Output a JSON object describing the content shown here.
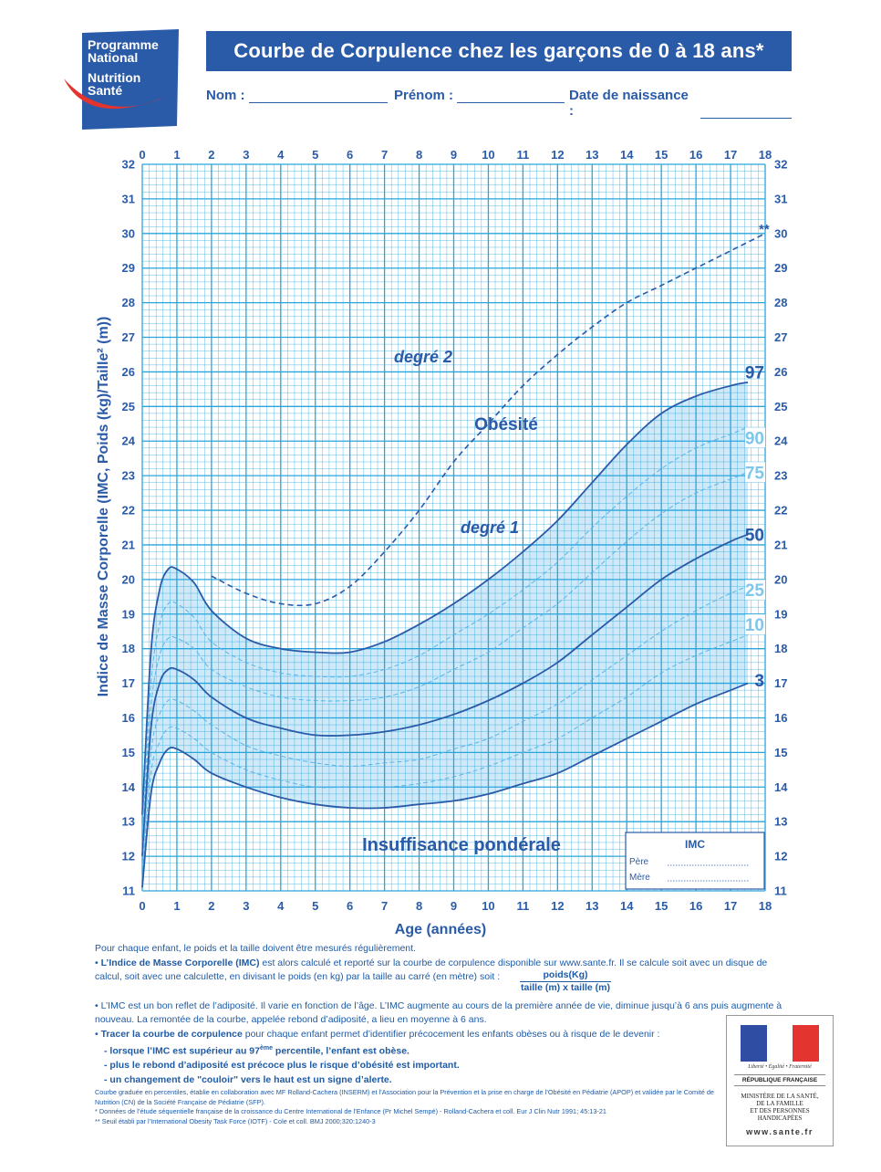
{
  "logo": {
    "line1": "Programme",
    "line2": "National",
    "line3": "Nutrition",
    "line4": "Santé"
  },
  "header": {
    "title": "Courbe de Corpulence chez les garçons de 0 à 18 ans*"
  },
  "fields": {
    "nom": "Nom :",
    "prenom": "Prénom :",
    "date": "Date de naissance :"
  },
  "chart_data": {
    "type": "line",
    "title": "Courbe de Corpulence chez les garçons de 0 à 18 ans*",
    "xlabel": "Age (années)",
    "ylabel": "Indice de Masse Corporelle (IMC, Poids (kg)/Taille² (m))",
    "xlim": [
      0,
      18
    ],
    "ylim": [
      11,
      32
    ],
    "x_ticks": [
      0,
      1,
      2,
      3,
      4,
      5,
      6,
      7,
      8,
      9,
      10,
      11,
      12,
      13,
      14,
      15,
      16,
      17,
      18
    ],
    "y_ticks": [
      11,
      12,
      13,
      14,
      15,
      16,
      17,
      18,
      19,
      20,
      21,
      22,
      23,
      24,
      25,
      26,
      27,
      28,
      29,
      30,
      31,
      32
    ],
    "series": [
      {
        "name": "97",
        "style": "solid",
        "ages": [
          0,
          0.25,
          0.5,
          0.75,
          1,
          1.5,
          2,
          3,
          4,
          5,
          6,
          7,
          8,
          9,
          10,
          11,
          12,
          13,
          14,
          15,
          16,
          17,
          17.5
        ],
        "values": [
          13.2,
          17.9,
          19.7,
          20.3,
          20.3,
          19.9,
          19.1,
          18.3,
          18.0,
          17.9,
          17.9,
          18.2,
          18.7,
          19.3,
          20.0,
          20.8,
          21.7,
          22.8,
          23.9,
          24.8,
          25.3,
          25.6,
          25.7
        ]
      },
      {
        "name": "90",
        "style": "dashed",
        "ages": [
          0,
          0.25,
          0.5,
          0.75,
          1,
          1.5,
          2,
          3,
          4,
          5,
          6,
          7,
          8,
          9,
          10,
          11,
          12,
          13,
          14,
          15,
          16,
          17,
          17.5
        ],
        "values": [
          12.8,
          17.0,
          18.7,
          19.3,
          19.3,
          18.9,
          18.2,
          17.6,
          17.3,
          17.2,
          17.2,
          17.4,
          17.8,
          18.4,
          19.0,
          19.7,
          20.5,
          21.5,
          22.4,
          23.2,
          23.8,
          24.2,
          24.4
        ]
      },
      {
        "name": "75",
        "style": "dashed",
        "ages": [
          0,
          0.25,
          0.5,
          0.75,
          1,
          1.5,
          2,
          3,
          4,
          5,
          6,
          7,
          8,
          9,
          10,
          11,
          12,
          13,
          14,
          15,
          16,
          17,
          17.5
        ],
        "values": [
          12.4,
          16.3,
          17.8,
          18.3,
          18.3,
          18.0,
          17.4,
          16.9,
          16.6,
          16.5,
          16.5,
          16.6,
          16.9,
          17.4,
          17.9,
          18.6,
          19.3,
          20.2,
          21.1,
          21.9,
          22.5,
          22.9,
          23.1
        ]
      },
      {
        "name": "50",
        "style": "solid",
        "ages": [
          0,
          0.25,
          0.5,
          0.75,
          1,
          1.5,
          2,
          3,
          4,
          5,
          6,
          7,
          8,
          9,
          10,
          11,
          12,
          13,
          14,
          15,
          16,
          17,
          17.5
        ],
        "values": [
          12.0,
          15.7,
          17.0,
          17.4,
          17.4,
          17.1,
          16.6,
          16.0,
          15.7,
          15.5,
          15.5,
          15.6,
          15.8,
          16.1,
          16.5,
          17.0,
          17.6,
          18.4,
          19.2,
          20.0,
          20.6,
          21.1,
          21.3
        ]
      },
      {
        "name": "25",
        "style": "dashed",
        "ages": [
          0,
          0.25,
          0.5,
          0.75,
          1,
          1.5,
          2,
          3,
          4,
          5,
          6,
          7,
          8,
          9,
          10,
          11,
          12,
          13,
          14,
          15,
          16,
          17,
          17.5
        ],
        "values": [
          11.7,
          15.0,
          16.1,
          16.5,
          16.5,
          16.2,
          15.8,
          15.2,
          14.9,
          14.7,
          14.6,
          14.7,
          14.8,
          15.1,
          15.4,
          15.9,
          16.4,
          17.1,
          17.8,
          18.5,
          19.1,
          19.6,
          19.8
        ]
      },
      {
        "name": "10",
        "style": "dashed",
        "ages": [
          0,
          0.25,
          0.5,
          0.75,
          1,
          1.5,
          2,
          3,
          4,
          5,
          6,
          7,
          8,
          9,
          10,
          11,
          12,
          13,
          14,
          15,
          16,
          17,
          17.5
        ],
        "values": [
          11.4,
          14.4,
          15.3,
          15.7,
          15.7,
          15.4,
          15.0,
          14.5,
          14.2,
          14.0,
          14.0,
          14.0,
          14.1,
          14.3,
          14.6,
          15.0,
          15.4,
          16.0,
          16.6,
          17.3,
          17.8,
          18.2,
          18.4
        ]
      },
      {
        "name": "3",
        "style": "solid",
        "ages": [
          0,
          0.25,
          0.5,
          0.75,
          1,
          1.5,
          2,
          3,
          4,
          5,
          6,
          7,
          8,
          9,
          10,
          11,
          12,
          13,
          14,
          15,
          16,
          17,
          17.5
        ],
        "values": [
          11.1,
          13.8,
          14.7,
          15.1,
          15.1,
          14.8,
          14.4,
          14.0,
          13.7,
          13.5,
          13.4,
          13.4,
          13.5,
          13.6,
          13.8,
          14.1,
          14.4,
          14.9,
          15.4,
          15.9,
          16.4,
          16.8,
          17.0
        ]
      },
      {
        "name": "IOTF 30 (**)",
        "style": "dashed-dark",
        "ages": [
          2,
          3,
          4,
          5,
          6,
          7,
          8,
          9,
          10,
          11,
          12,
          13,
          14,
          15,
          16,
          17,
          18
        ],
        "values": [
          20.1,
          19.6,
          19.3,
          19.3,
          19.8,
          20.8,
          22.0,
          23.4,
          24.5,
          25.6,
          26.5,
          27.3,
          28.0,
          28.5,
          29.0,
          29.5,
          30.0
        ]
      }
    ],
    "percentile_labels": [
      "97",
      "90",
      "75",
      "50",
      "25",
      "10",
      "3"
    ],
    "annotations": {
      "degre2": "degré 2",
      "obesite": "Obésité",
      "degre1": "degré 1",
      "insuffisance": "Insuffisance pondérale",
      "iotf_mark": "**"
    },
    "imc_box": {
      "title": "IMC",
      "pere": "Père",
      "mere": "Mère"
    }
  },
  "notes": {
    "p1": "Pour chaque enfant, le poids et la taille doivent être mesurés régulièrement.",
    "p2_bold": "L’Indice de Masse Corporelle (IMC)",
    "p2": " est alors calculé et reporté sur la courbe de corpulence disponible sur www.sante.fr. Il se calcule soit avec un disque de calcul, soit avec une calculette, en divisant le poids (en kg) par la taille au carré (en mètre) soit :",
    "frac_num": "poids(Kg)",
    "frac_den": "taille (m) x taille (m)",
    "p3": "L’IMC est un bon reflet de l’adiposité. Il varie en fonction de l’âge. L’IMC augmente au cours de la première année de vie, diminue jusqu’à 6 ans puis augmente à nouveau. La remontée de la courbe, appelée rebond d’adiposité, a lieu en moyenne à 6 ans.",
    "p4_bold": "Tracer la courbe de corpulence",
    "p4": " pour chaque enfant permet d’identifier précocement les enfants obèses ou à risque de le devenir :",
    "b1a": "- lorsque l’IMC est supérieur au 97",
    "b1sup": "ème",
    "b1b": " percentile, l’enfant est obèse.",
    "b2": "- plus le rebond d’adiposité est précoce plus le risque d’obésité est important.",
    "b3": "- un changement de \"couloir\" vers le haut est un signe d’alerte."
  },
  "footnotes": {
    "f1": "Courbe graduée en percentiles, établie en collaboration avec MF Rolland-Cachera (INSERM) et l’Association pour la Prévention et la prise en charge de l’Obésité en Pédiatrie (APOP) et validée par le Comité de Nutrition (CN) de la Société Française de Pédiatrie (SFP).",
    "f2": "* Données de l’étude séquentielle française de la croissance du Centre International de l’Enfance (Pr Michel Sempé) - Rolland-Cachera et coll. Eur J Clin Nutr 1991; 45:13-21",
    "f3": "** Seuil établi par l’International Obesity Task Force (IOTF) - Cole et coll. BMJ 2000;320:1240-3"
  },
  "ministry": {
    "devise": "Liberté • Égalité • Fraternité",
    "republique": "RÉPUBLIQUE FRANÇAISE",
    "line1": "MINISTÈRE DE LA SANTÉ,",
    "line2": "DE LA FAMILLE",
    "line3": "ET DES PERSONNES",
    "line4": "HANDICAPÉES",
    "url": "www.sante.fr"
  },
  "colors": {
    "grid": "#2aa5dc",
    "curve": "#2a5ba8",
    "fill": "#cfe9f8",
    "label": "#1f5ba6",
    "light_label": "#7ec6ea"
  }
}
